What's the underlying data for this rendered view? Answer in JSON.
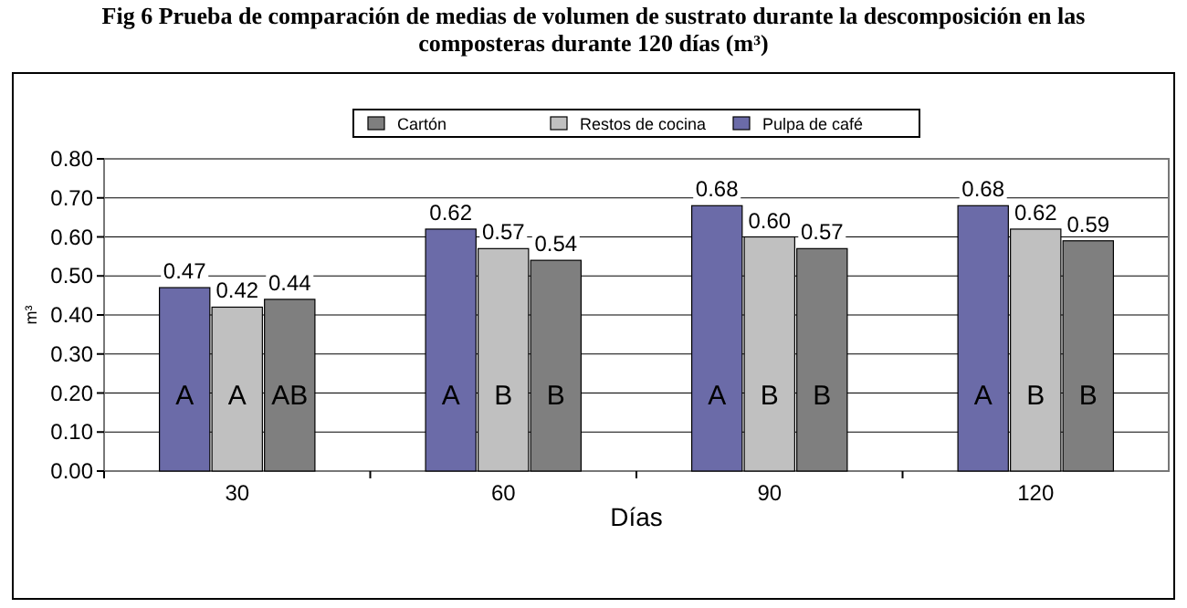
{
  "chart_data": {
    "type": "bar",
    "title": "Fig 6 Prueba de comparación de medias de volumen de sustrato durante la descomposición en las composteras durante 120 días (m³)",
    "xlabel": "Días",
    "ylabel": "m³",
    "categories": [
      "30",
      "60",
      "90",
      "120"
    ],
    "series": [
      {
        "name": "Pulpa de café",
        "color": "#6b6ba8",
        "values": [
          0.47,
          0.62,
          0.68,
          0.68
        ],
        "value_labels": [
          "0.47",
          "0.62",
          "0.68",
          "0.68"
        ]
      },
      {
        "name": "Restos de cocina",
        "color": "#c0c0c0",
        "values": [
          0.42,
          0.57,
          0.6,
          0.62
        ],
        "value_labels": [
          "0.42",
          "0.57",
          "0.60",
          "0.62"
        ]
      },
      {
        "name": "Cartón",
        "color": "#7f7f7f",
        "values": [
          0.44,
          0.54,
          0.57,
          0.59
        ],
        "value_labels": [
          "0.44",
          "0.54",
          "0.57",
          "0.59"
        ]
      }
    ],
    "ylim": [
      0,
      0.8
    ],
    "yticks": [
      {
        "value": 0,
        "label": "0.00"
      },
      {
        "value": 0.1,
        "label": "0.10"
      },
      {
        "value": 0.2,
        "label": "0.20"
      },
      {
        "value": 0.3,
        "label": "0.30"
      },
      {
        "value": 0.4,
        "label": "0.40"
      },
      {
        "value": 0.5,
        "label": "0.50"
      },
      {
        "value": 0.6,
        "label": "0.60"
      },
      {
        "value": 0.7,
        "label": "0.70"
      },
      {
        "value": 0.8,
        "label": "0.80"
      }
    ],
    "grid": "y",
    "legend": "top",
    "annotations": [
      "A",
      "A",
      "AB",
      "A",
      "B",
      "B",
      "A",
      "B",
      "B",
      "A",
      "B",
      "B"
    ]
  }
}
